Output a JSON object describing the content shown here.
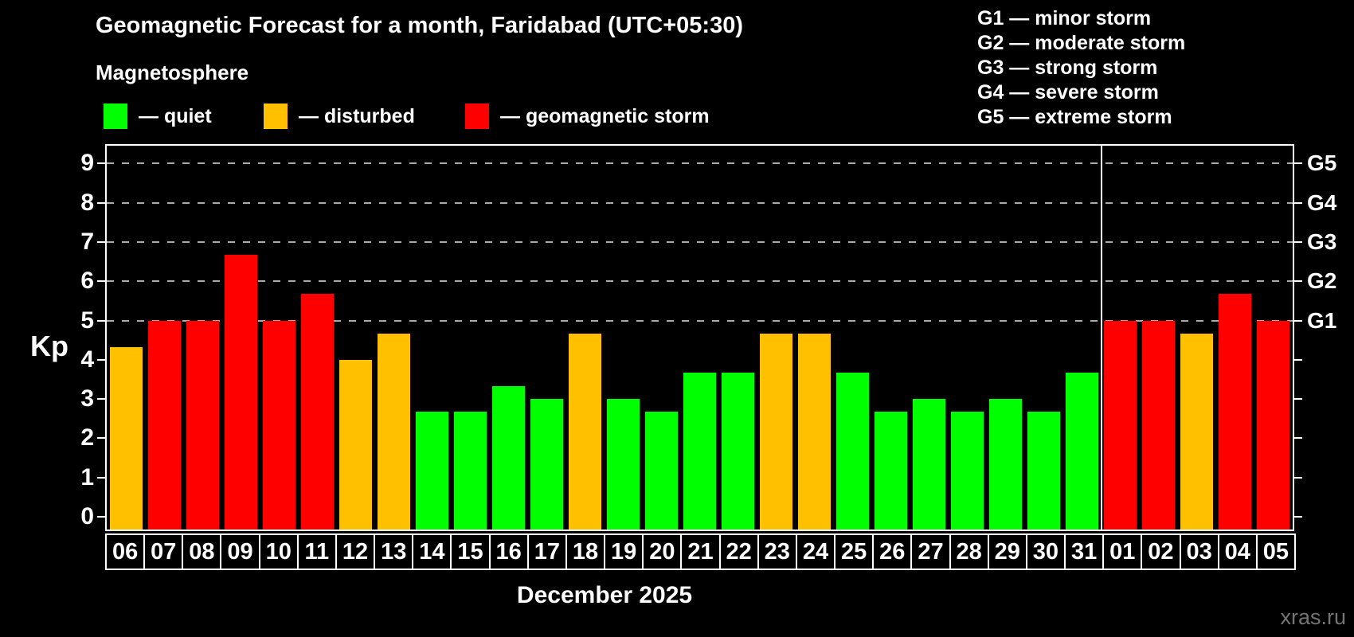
{
  "header": {
    "title": "Geomagnetic Forecast for a month, Faridabad (UTC+05:30)",
    "subtitle": "Magnetosphere"
  },
  "legend": {
    "items": [
      {
        "state": "quiet",
        "color": "#00ff00",
        "label": "— quiet"
      },
      {
        "state": "disturbed",
        "color": "#ffc000",
        "label": "— disturbed"
      },
      {
        "state": "storm",
        "color": "#ff0000",
        "label": "— geomagnetic storm"
      }
    ]
  },
  "g_scale_legend": {
    "items": [
      "G1 — minor storm",
      "G2 — moderate storm",
      "G3 — strong storm",
      "G4 — severe storm",
      "G5 — extreme storm"
    ]
  },
  "chart_data": {
    "type": "bar",
    "title": "Geomagnetic Forecast for a month, Faridabad (UTC+05:30)",
    "subtitle": "Magnetosphere",
    "xlabel": "December 2025",
    "ylabel": "Kp",
    "ylim": [
      0,
      9
    ],
    "yticks": [
      0,
      1,
      2,
      3,
      4,
      5,
      6,
      7,
      8,
      9
    ],
    "grid": "dashed horizontal lines at Kp 5-9",
    "legend_position": "top-left",
    "categories": [
      "06",
      "07",
      "08",
      "09",
      "10",
      "11",
      "12",
      "13",
      "14",
      "15",
      "16",
      "17",
      "18",
      "19",
      "20",
      "21",
      "22",
      "23",
      "24",
      "25",
      "26",
      "27",
      "28",
      "29",
      "30",
      "31",
      "01",
      "02",
      "03",
      "04",
      "05"
    ],
    "values": [
      4.33,
      5,
      5,
      6.67,
      5,
      5.67,
      4,
      4.67,
      2.67,
      2.67,
      3.33,
      3,
      4.67,
      3,
      2.67,
      3.67,
      3.67,
      4.67,
      4.67,
      3.67,
      2.67,
      3,
      2.67,
      3,
      2.67,
      3.67,
      5,
      5,
      4.67,
      5.67,
      5
    ],
    "states": [
      "disturbed",
      "storm",
      "storm",
      "storm",
      "storm",
      "storm",
      "disturbed",
      "disturbed",
      "quiet",
      "quiet",
      "quiet",
      "quiet",
      "disturbed",
      "quiet",
      "quiet",
      "quiet",
      "quiet",
      "disturbed",
      "disturbed",
      "quiet",
      "quiet",
      "quiet",
      "quiet",
      "quiet",
      "quiet",
      "quiet",
      "storm",
      "storm",
      "disturbed",
      "storm",
      "storm"
    ],
    "colors": {
      "quiet": "#00ff00",
      "disturbed": "#ffc000",
      "storm": "#ff0000"
    },
    "right_axis_labels": [
      {
        "kp": 5,
        "label": "G1"
      },
      {
        "kp": 6,
        "label": "G2"
      },
      {
        "kp": 7,
        "label": "G3"
      },
      {
        "kp": 8,
        "label": "G4"
      },
      {
        "kp": 9,
        "label": "G5"
      }
    ],
    "month_boundary_after": "31"
  },
  "footer": {
    "month_label": "December 2025",
    "watermark": "xras.ru"
  }
}
